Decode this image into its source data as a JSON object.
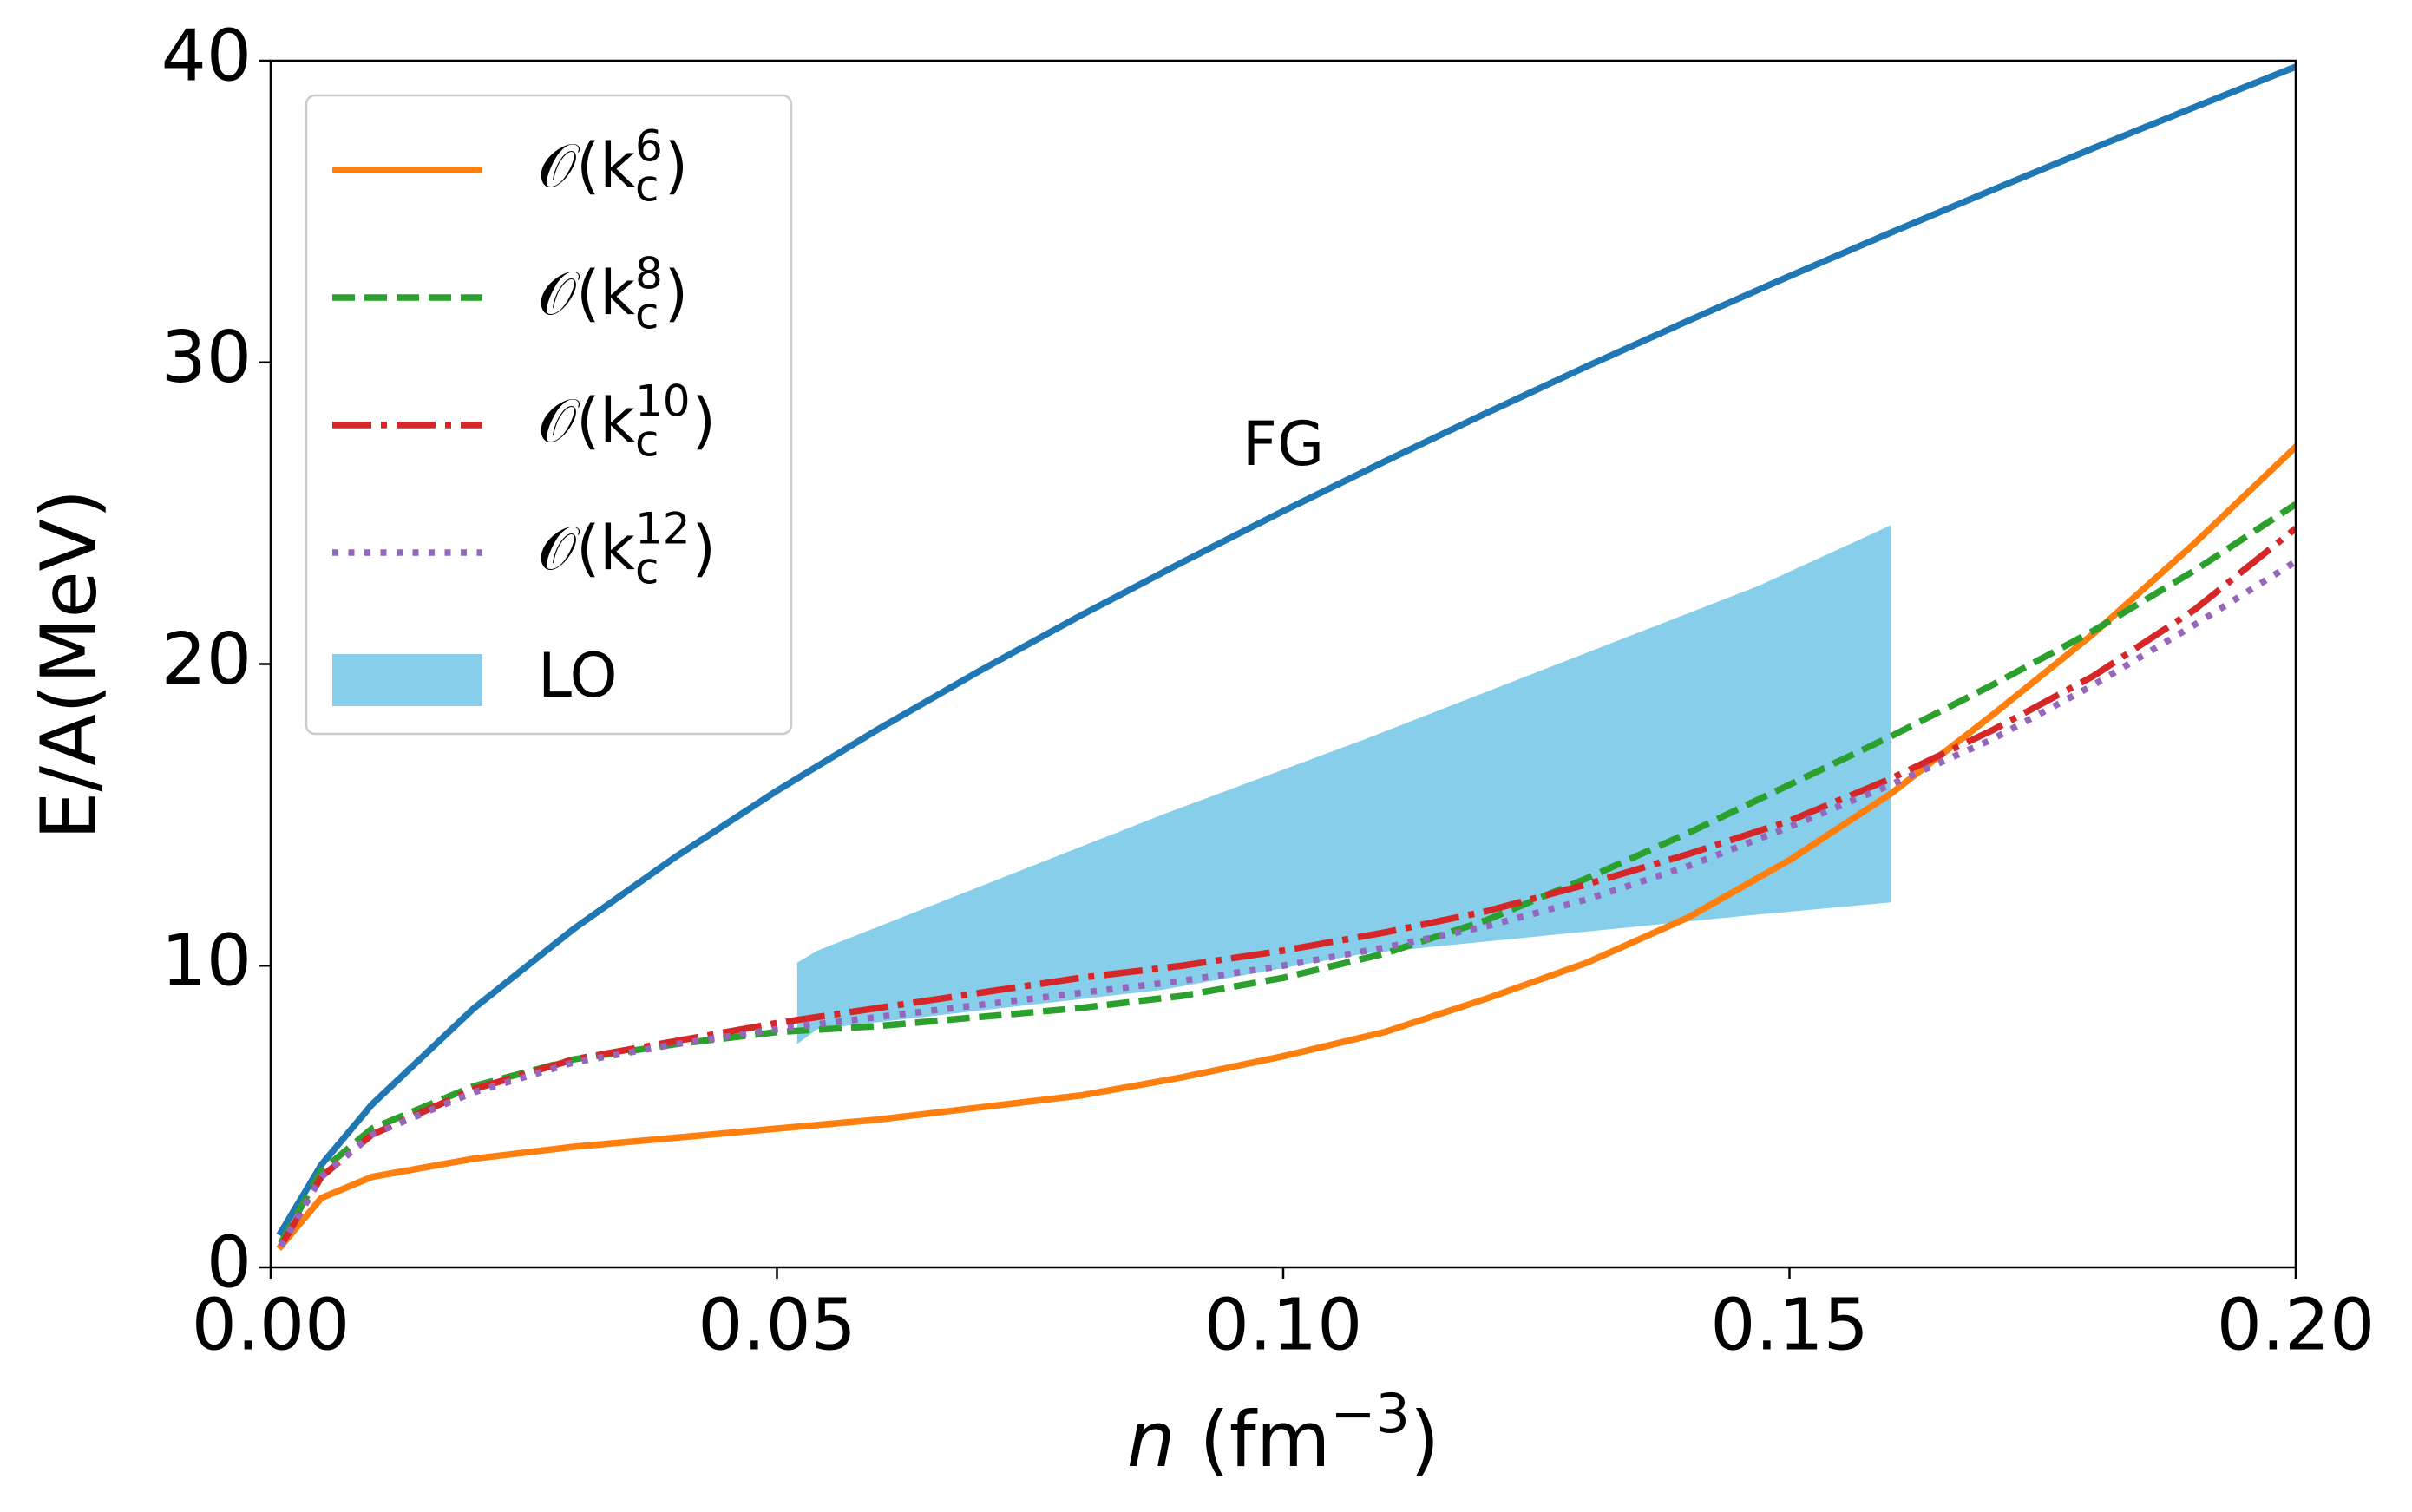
{
  "chart_data": {
    "type": "line",
    "xlabel": {
      "var": "n",
      "unit": " (fm",
      "exp": "−3",
      "close": ")"
    },
    "ylabel": "E/A(MeV)",
    "xlim": [
      0,
      0.2
    ],
    "ylim": [
      0,
      40
    ],
    "xticks": [
      {
        "value": 0,
        "label": "0.00"
      },
      0.05,
      {
        "value": 0.1,
        "label": "0.10"
      },
      0.15,
      {
        "value": 0.2,
        "label": "0.20"
      }
    ],
    "yticks": [
      0,
      10,
      20,
      30,
      40
    ],
    "legend": "upper left",
    "annotations": [
      {
        "text": "FG"
      }
    ],
    "x": [
      0.001,
      0.005,
      0.01,
      0.02,
      0.03,
      0.04,
      0.05,
      0.06,
      0.07,
      0.08,
      0.09,
      0.1,
      0.11,
      0.12,
      0.13,
      0.14,
      0.15,
      0.16,
      0.17,
      0.18,
      0.19,
      0.2
    ],
    "series": [
      {
        "color": "#1f77b4",
        "style": "solid",
        "values": [
          1.16,
          3.4,
          5.4,
          8.57,
          11.24,
          13.61,
          15.8,
          17.84,
          19.77,
          21.61,
          23.37,
          25.07,
          26.71,
          28.31,
          29.87,
          31.38,
          32.86,
          34.3,
          35.71,
          37.1,
          38.46,
          39.8
        ]
      },
      {
        "name": {
          "base": "𝒪(k",
          "sub": "c",
          "sup": "6",
          "close": ")"
        },
        "color": "#ff7f0e",
        "style": "solid",
        "values": [
          0.7,
          2.3,
          3.0,
          3.6,
          4.0,
          4.3,
          4.6,
          4.9,
          5.3,
          5.7,
          6.3,
          7.0,
          7.8,
          8.9,
          10.1,
          11.6,
          13.5,
          15.7,
          18.3,
          21.0,
          24.0,
          27.2
        ]
      },
      {
        "name": {
          "base": "𝒪(k",
          "sub": "c",
          "sup": "8",
          "close": ")"
        },
        "color": "#2ca02c",
        "style": "dashed",
        "values": [
          0.8,
          3.2,
          4.6,
          6.0,
          6.9,
          7.4,
          7.8,
          8.0,
          8.3,
          8.6,
          9.0,
          9.6,
          10.4,
          11.5,
          12.9,
          14.4,
          16.0,
          17.6,
          19.3,
          21.1,
          23.1,
          25.3
        ]
      },
      {
        "name": {
          "base": "𝒪(k",
          "sub": "c",
          "sup": "10",
          "close": ")"
        },
        "color": "#d62728",
        "style": "dashdot",
        "values": [
          0.7,
          3.0,
          4.4,
          5.9,
          6.9,
          7.5,
          8.1,
          8.6,
          9.1,
          9.6,
          10.0,
          10.5,
          11.1,
          11.8,
          12.7,
          13.7,
          14.8,
          16.2,
          17.8,
          19.6,
          21.8,
          24.5
        ]
      },
      {
        "name": {
          "base": "𝒪(k",
          "sub": "c",
          "sup": "12",
          "close": ")"
        },
        "color": "#9467bd",
        "style": "dotted",
        "values": [
          0.7,
          3.0,
          4.4,
          5.8,
          6.8,
          7.4,
          7.9,
          8.3,
          8.7,
          9.1,
          9.5,
          10.0,
          10.6,
          11.3,
          12.2,
          13.3,
          14.6,
          16.0,
          17.5,
          19.3,
          21.3,
          23.4
        ]
      }
    ],
    "bands": [
      {
        "name": "LO",
        "color": "#87ceeb",
        "x": [
          0.052,
          0.054,
          0.088,
          0.108,
          0.147,
          0.16
        ],
        "upper": [
          10.1,
          10.5,
          15.0,
          17.5,
          22.6,
          24.6
        ],
        "lower": [
          7.4,
          7.9,
          9.2,
          10.4,
          11.7,
          12.1
        ]
      }
    ]
  }
}
